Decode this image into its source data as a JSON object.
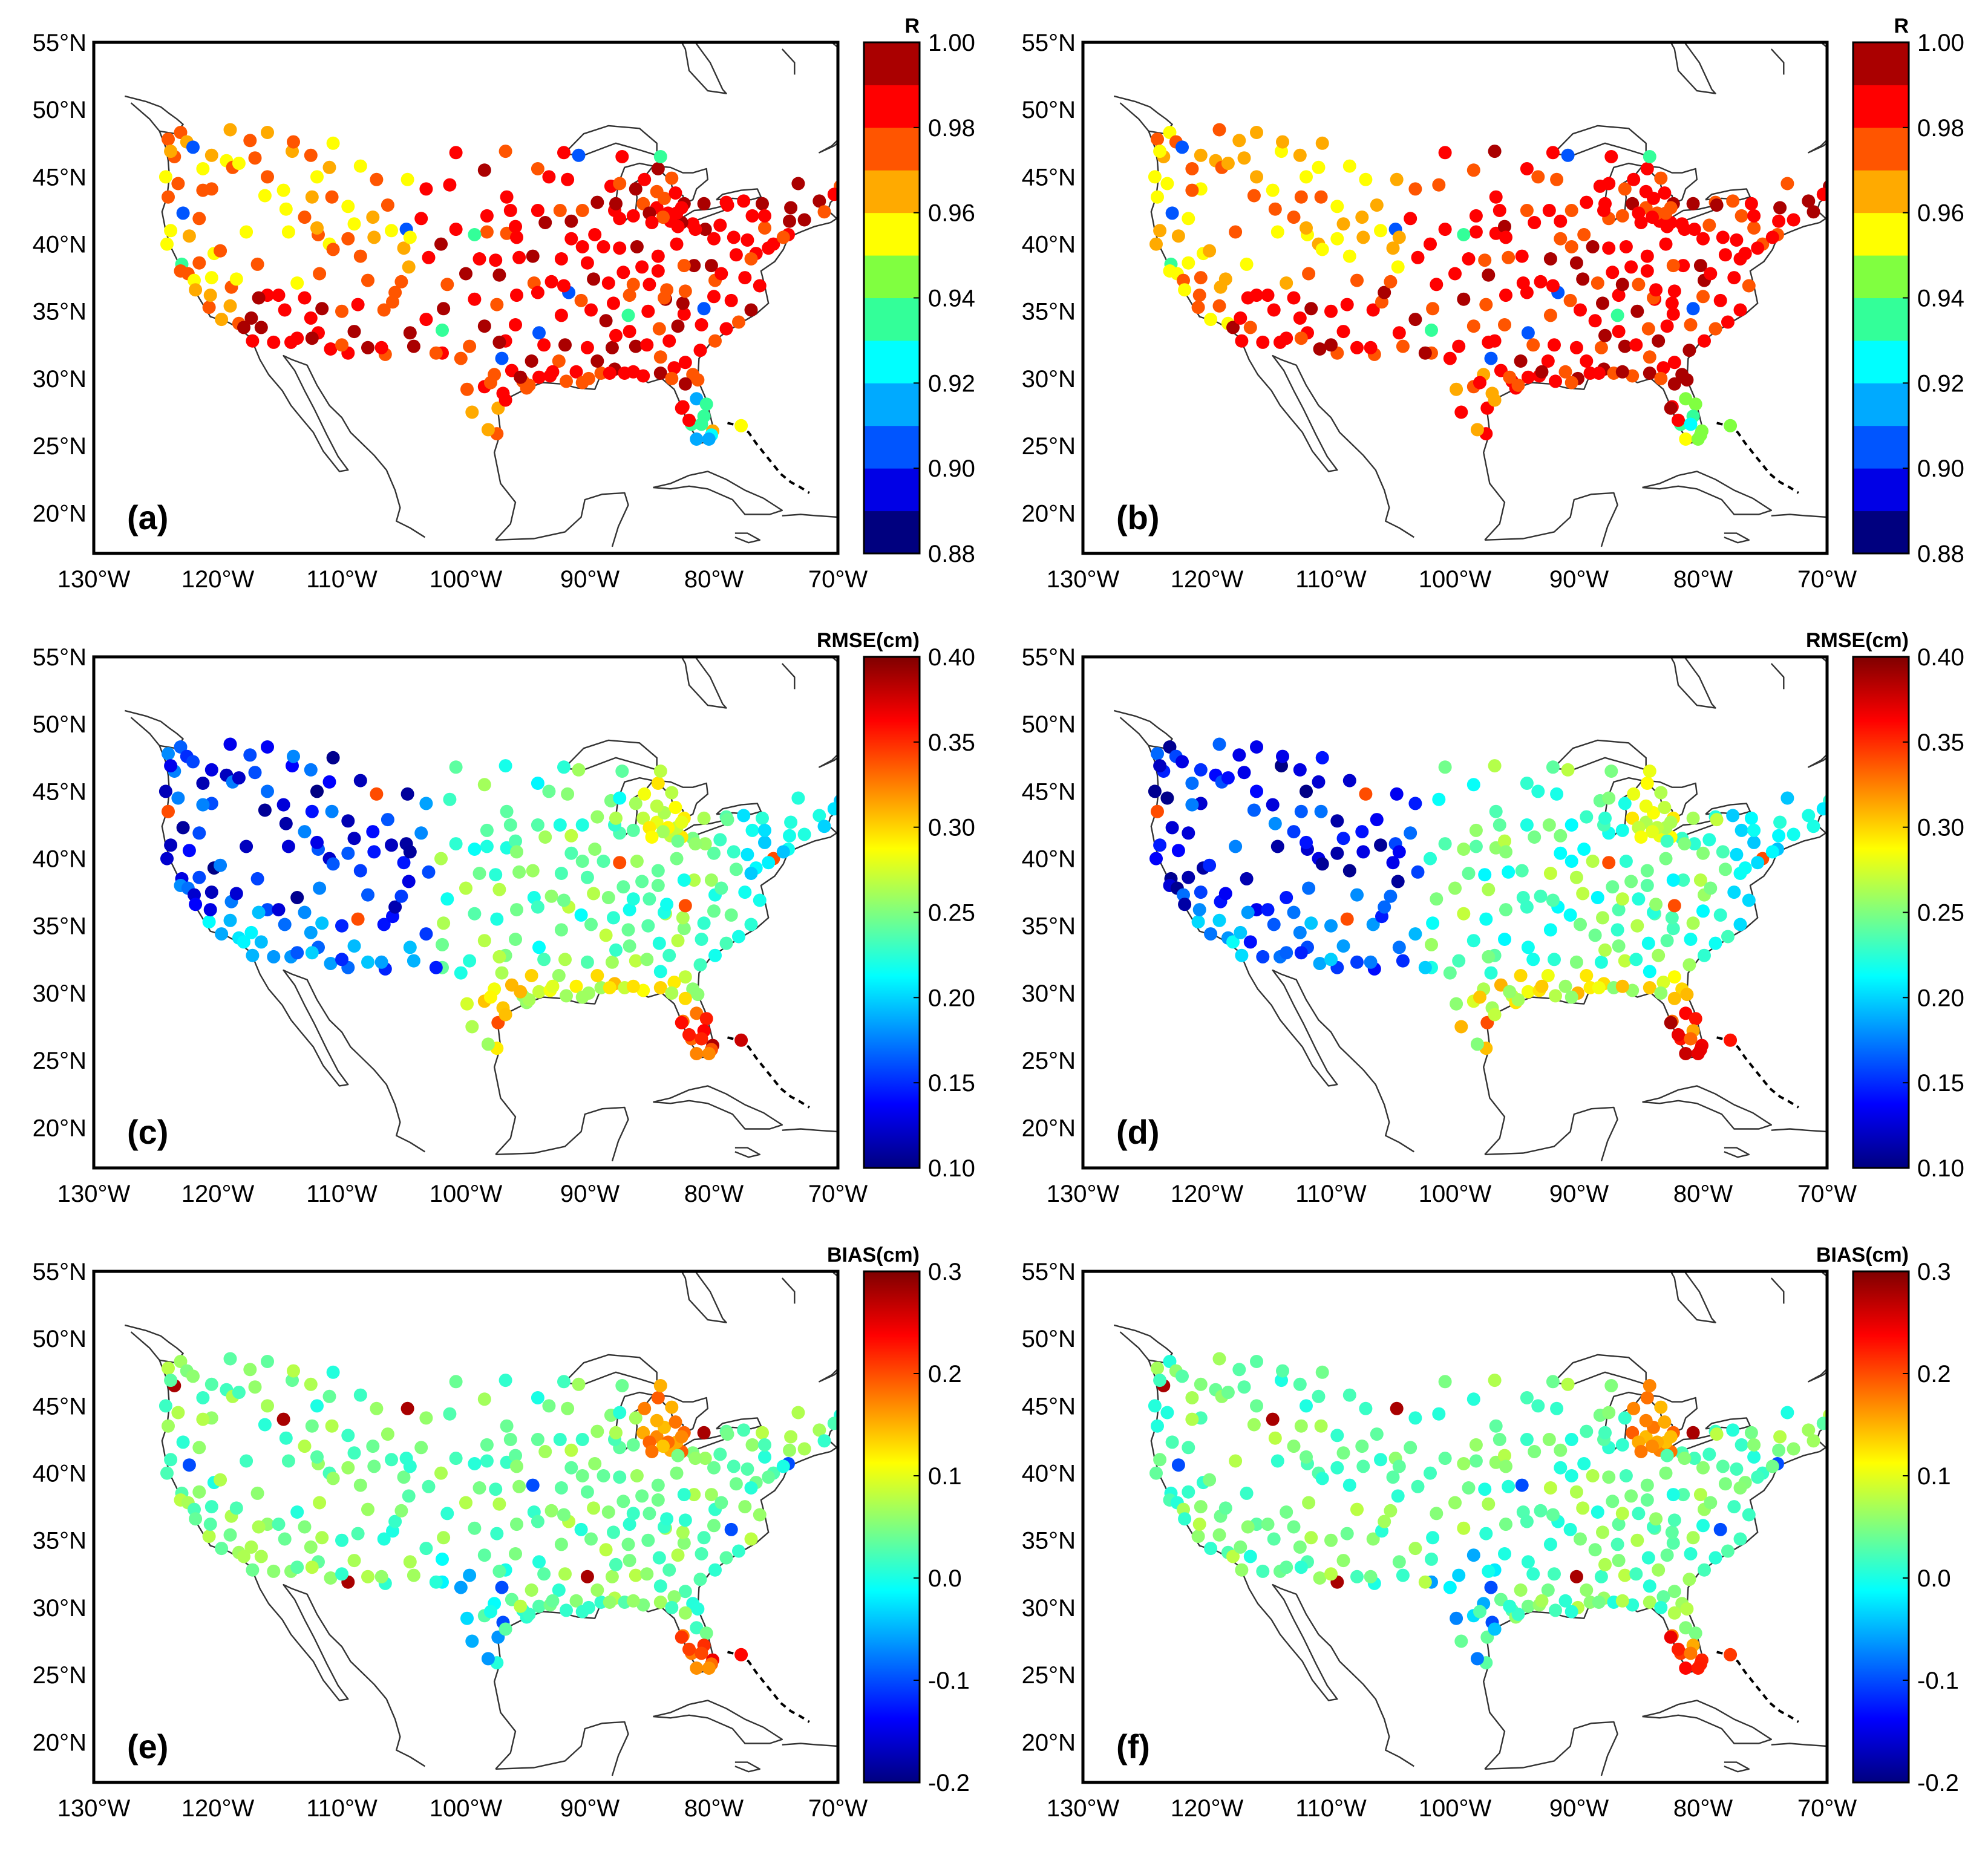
{
  "figure": {
    "lon_ticks": [
      "130°W",
      "120°W",
      "110°W",
      "100°W",
      "90°W",
      "80°W",
      "70°W"
    ],
    "lat_ticks": [
      "55°N",
      "50°N",
      "45°N",
      "40°N",
      "35°N",
      "30°N",
      "25°N",
      "20°N"
    ],
    "lon_range": [
      -130,
      -70
    ],
    "lat_range": [
      17,
      55
    ]
  },
  "colormap": {
    "jet_stops": [
      "#00007f",
      "#0000ff",
      "#007fff",
      "#00ffff",
      "#7fff7f",
      "#ffff00",
      "#ff7f00",
      "#ff0000",
      "#7f0000"
    ],
    "discrete_R": [
      "#00007f",
      "#0000e6",
      "#0055ff",
      "#00aaff",
      "#00ffff",
      "#33ff99",
      "#80ff40",
      "#ffff00",
      "#ffaa00",
      "#ff5500",
      "#ff0000",
      "#aa0000"
    ]
  },
  "panels": [
    {
      "id": "a",
      "label": "(a)",
      "cb_title": "R",
      "cb_ticks": [
        "1.00",
        "0.98",
        "0.96",
        "0.94",
        "0.92",
        "0.90",
        "0.88"
      ],
      "vmin": 0.88,
      "vmax": 1.0,
      "metric": "R",
      "variant": 0
    },
    {
      "id": "b",
      "label": "(b)",
      "cb_title": "R",
      "cb_ticks": [
        "1.00",
        "0.98",
        "0.96",
        "0.94",
        "0.92",
        "0.90",
        "0.88"
      ],
      "vmin": 0.88,
      "vmax": 1.0,
      "metric": "R",
      "variant": 1
    },
    {
      "id": "c",
      "label": "(c)",
      "cb_title": "RMSE(cm)",
      "cb_ticks": [
        "0.40",
        "0.35",
        "0.30",
        "0.25",
        "0.20",
        "0.15",
        "0.10"
      ],
      "vmin": 0.1,
      "vmax": 0.4,
      "metric": "RMSE",
      "variant": 0
    },
    {
      "id": "d",
      "label": "(d)",
      "cb_title": "RMSE(cm)",
      "cb_ticks": [
        "0.40",
        "0.35",
        "0.30",
        "0.25",
        "0.20",
        "0.15",
        "0.10"
      ],
      "vmin": 0.1,
      "vmax": 0.4,
      "metric": "RMSE",
      "variant": 1
    },
    {
      "id": "e",
      "label": "(e)",
      "cb_title": "BIAS(cm)",
      "cb_ticks": [
        "0.3",
        "0.2",
        "0.1",
        "0.0",
        "-0.1",
        "-0.2"
      ],
      "vmin": -0.2,
      "vmax": 0.3,
      "metric": "BIAS",
      "variant": 0
    },
    {
      "id": "f",
      "label": "(f)",
      "cb_title": "BIAS(cm)",
      "cb_ticks": [
        "0.3",
        "0.2",
        "0.1",
        "0.0",
        "-0.1",
        "-0.2"
      ],
      "vmin": -0.2,
      "vmax": 0.3,
      "metric": "BIAS",
      "variant": 1
    }
  ],
  "chart_data": {
    "type": "scatter",
    "x_label_ticks": [
      "130°W",
      "120°W",
      "110°W",
      "100°W",
      "90°W",
      "80°W",
      "70°W"
    ],
    "y_label_ticks": [
      "55°N",
      "50°N",
      "45°N",
      "40°N",
      "35°N",
      "30°N",
      "25°N",
      "20°N"
    ],
    "xlim": [
      -130,
      -70
    ],
    "ylim": [
      17,
      55
    ],
    "stations": [
      [
        -123.0,
        48.3
      ],
      [
        -122.5,
        47.6
      ],
      [
        -124.0,
        47.8
      ],
      [
        -123.5,
        46.5
      ],
      [
        -124.2,
        45.0
      ],
      [
        -124.0,
        43.5
      ],
      [
        -123.2,
        44.5
      ],
      [
        -122.8,
        42.3
      ],
      [
        -123.8,
        41.0
      ],
      [
        -122.3,
        40.6
      ],
      [
        -124.1,
        40.0
      ],
      [
        -122.9,
        38.5
      ],
      [
        -123.0,
        38.0
      ],
      [
        -122.4,
        37.8
      ],
      [
        -121.9,
        37.3
      ],
      [
        -121.5,
        38.6
      ],
      [
        -120.5,
        37.5
      ],
      [
        -121.8,
        36.6
      ],
      [
        -120.7,
        35.3
      ],
      [
        -119.7,
        34.4
      ],
      [
        -119.0,
        35.4
      ],
      [
        -118.3,
        34.1
      ],
      [
        -117.9,
        33.8
      ],
      [
        -117.2,
        32.8
      ],
      [
        -116.5,
        33.8
      ],
      [
        -115.5,
        32.7
      ],
      [
        -117.3,
        34.5
      ],
      [
        -118.9,
        36.8
      ],
      [
        -120.3,
        39.3
      ],
      [
        -119.8,
        39.5
      ],
      [
        -121.5,
        41.9
      ],
      [
        -120.5,
        44.1
      ],
      [
        -121.2,
        45.6
      ],
      [
        -119.3,
        46.2
      ],
      [
        -117.4,
        47.7
      ],
      [
        -119.0,
        48.5
      ],
      [
        -117.0,
        46.4
      ],
      [
        -116.2,
        43.6
      ],
      [
        -114.5,
        42.6
      ],
      [
        -112.4,
        43.5
      ],
      [
        -111.9,
        40.7
      ],
      [
        -113.6,
        37.1
      ],
      [
        -112.0,
        41.2
      ],
      [
        -114.0,
        46.9
      ],
      [
        -111.0,
        45.7
      ],
      [
        -112.5,
        46.6
      ],
      [
        -108.5,
        45.8
      ],
      [
        -106.3,
        42.9
      ],
      [
        -104.8,
        41.1
      ],
      [
        -105.0,
        39.7
      ],
      [
        -104.6,
        38.3
      ],
      [
        -106.6,
        35.1
      ],
      [
        -108.7,
        35.5
      ],
      [
        -105.9,
        35.7
      ],
      [
        -103.2,
        34.4
      ],
      [
        -106.5,
        31.8
      ],
      [
        -110.9,
        32.2
      ],
      [
        -111.9,
        33.4
      ],
      [
        -112.5,
        34.5
      ],
      [
        -111.6,
        35.2
      ],
      [
        -114.6,
        35.1
      ],
      [
        -114.1,
        32.7
      ],
      [
        -109.5,
        31.9
      ],
      [
        -104.5,
        33.4
      ],
      [
        -101.9,
        33.6
      ],
      [
        -101.8,
        35.2
      ],
      [
        -97.5,
        35.5
      ],
      [
        -95.9,
        36.2
      ],
      [
        -97.3,
        37.7
      ],
      [
        -95.7,
        39.0
      ],
      [
        -94.6,
        39.1
      ],
      [
        -96.7,
        40.8
      ],
      [
        -98.3,
        40.9
      ],
      [
        -100.8,
        41.1
      ],
      [
        -103.6,
        41.9
      ],
      [
        -100.8,
        46.8
      ],
      [
        -96.8,
        46.9
      ],
      [
        -98.5,
        45.5
      ],
      [
        -96.7,
        43.5
      ],
      [
        -101.3,
        44.4
      ],
      [
        -103.2,
        44.1
      ],
      [
        -93.3,
        45.0
      ],
      [
        -92.1,
        46.8
      ],
      [
        -93.6,
        41.6
      ],
      [
        -91.5,
        41.7
      ],
      [
        -90.2,
        38.6
      ],
      [
        -92.3,
        38.9
      ],
      [
        -94.5,
        37.1
      ],
      [
        -92.3,
        34.7
      ],
      [
        -94.1,
        33.4
      ],
      [
        -96.8,
        32.8
      ],
      [
        -97.3,
        32.7
      ],
      [
        -97.7,
        30.3
      ],
      [
        -98.5,
        29.4
      ],
      [
        -95.4,
        29.8
      ],
      [
        -94.1,
        30.1
      ],
      [
        -99.7,
        32.4
      ],
      [
        -101.9,
        31.9
      ],
      [
        -100.4,
        31.5
      ],
      [
        -97.4,
        27.8
      ],
      [
        -97.5,
        25.9
      ],
      [
        -99.5,
        27.5
      ],
      [
        -98.2,
        26.2
      ],
      [
        -93.2,
        30.2
      ],
      [
        -91.1,
        30.5
      ],
      [
        -90.1,
        30.0
      ],
      [
        -88.0,
        30.7
      ],
      [
        -89.1,
        30.4
      ],
      [
        -87.2,
        30.4
      ],
      [
        -85.7,
        30.2
      ],
      [
        -84.3,
        30.4
      ],
      [
        -82.5,
        27.9
      ],
      [
        -82.6,
        27.8
      ],
      [
        -81.4,
        28.5
      ],
      [
        -81.7,
        30.3
      ],
      [
        -80.1,
        26.1
      ],
      [
        -80.2,
        25.8
      ],
      [
        -81.8,
        26.6
      ],
      [
        -81.4,
        25.5
      ],
      [
        -80.6,
        28.1
      ],
      [
        -77.8,
        26.5
      ],
      [
        -90.2,
        32.3
      ],
      [
        -88.7,
        34.3
      ],
      [
        -86.8,
        33.5
      ],
      [
        -86.3,
        32.4
      ],
      [
        -84.4,
        33.7
      ],
      [
        -83.6,
        32.8
      ],
      [
        -81.1,
        32.1
      ],
      [
        -79.9,
        32.8
      ],
      [
        -81.0,
        34.0
      ],
      [
        -80.8,
        35.2
      ],
      [
        -78.6,
        35.8
      ],
      [
        -77.0,
        35.1
      ],
      [
        -76.3,
        36.9
      ],
      [
        -77.5,
        37.5
      ],
      [
        -79.9,
        37.3
      ],
      [
        -80.2,
        38.4
      ],
      [
        -81.6,
        38.4
      ],
      [
        -82.4,
        38.4
      ],
      [
        -84.5,
        38.0
      ],
      [
        -85.8,
        38.3
      ],
      [
        -86.8,
        36.2
      ],
      [
        -83.9,
        35.9
      ],
      [
        -85.3,
        35.0
      ],
      [
        -89.9,
        35.1
      ],
      [
        -88.5,
        37.1
      ],
      [
        -87.6,
        39.7
      ],
      [
        -86.2,
        39.8
      ],
      [
        -84.5,
        39.1
      ],
      [
        -83.0,
        40.0
      ],
      [
        -81.7,
        41.5
      ],
      [
        -80.0,
        40.4
      ],
      [
        -82.6,
        41.6
      ],
      [
        -83.5,
        41.7
      ],
      [
        -83.0,
        42.3
      ],
      [
        -84.6,
        42.7
      ],
      [
        -85.7,
        43.0
      ],
      [
        -86.3,
        44.1
      ],
      [
        -84.5,
        45.6
      ],
      [
        -84.0,
        43.4
      ],
      [
        -82.4,
        43.0
      ],
      [
        -83.7,
        42.3
      ],
      [
        -85.2,
        42.3
      ],
      [
        -86.5,
        42.1
      ],
      [
        -87.6,
        41.9
      ],
      [
        -88.0,
        42.5
      ],
      [
        -87.9,
        43.0
      ],
      [
        -89.4,
        43.1
      ],
      [
        -88.3,
        44.3
      ],
      [
        -87.4,
        46.5
      ],
      [
        -84.3,
        46.5
      ],
      [
        -90.9,
        46.6
      ],
      [
        -87.6,
        44.5
      ],
      [
        -85.6,
        44.8
      ],
      [
        -83.4,
        44.9
      ],
      [
        -84.1,
        42.0
      ],
      [
        -85.0,
        41.6
      ],
      [
        -84.6,
        43.9
      ],
      [
        -83.1,
        43.8
      ],
      [
        -82.6,
        42.7
      ],
      [
        -80.8,
        43.0
      ],
      [
        -79.0,
        43.1
      ],
      [
        -78.9,
        42.9
      ],
      [
        -77.6,
        43.2
      ],
      [
        -76.1,
        43.0
      ],
      [
        -73.8,
        42.7
      ],
      [
        -73.2,
        44.5
      ],
      [
        -71.5,
        43.2
      ],
      [
        -71.1,
        42.4
      ],
      [
        -69.8,
        44.3
      ],
      [
        -70.3,
        43.7
      ],
      [
        -72.7,
        41.8
      ],
      [
        -74.0,
        40.7
      ],
      [
        -75.2,
        40.0
      ],
      [
        -75.6,
        39.7
      ],
      [
        -76.6,
        39.3
      ],
      [
        -77.0,
        38.9
      ],
      [
        -74.4,
        40.5
      ],
      [
        -75.9,
        41.2
      ],
      [
        -77.3,
        40.3
      ],
      [
        -79.5,
        41.4
      ],
      [
        -78.4,
        40.5
      ],
      [
        -80.7,
        41.1
      ],
      [
        -81.5,
        41.1
      ],
      [
        -82.9,
        41.3
      ],
      [
        -89.6,
        40.7
      ],
      [
        -90.6,
        42.5
      ],
      [
        -91.8,
        44.8
      ],
      [
        -94.2,
        45.6
      ],
      [
        -96.0,
        41.3
      ],
      [
        -95.9,
        40.5
      ],
      [
        -93.1,
        37.2
      ],
      [
        -91.7,
        36.4
      ],
      [
        -90.7,
        35.8
      ],
      [
        -92.1,
        36.9
      ],
      [
        -94.2,
        36.4
      ],
      [
        -96.0,
        34.0
      ],
      [
        -98.5,
        33.9
      ],
      [
        -99.3,
        35.9
      ],
      [
        -101.5,
        37.0
      ],
      [
        -100.0,
        37.8
      ],
      [
        -98.9,
        38.9
      ],
      [
        -97.6,
        38.8
      ],
      [
        -99.3,
        40.7
      ],
      [
        -102.0,
        40.0
      ],
      [
        -104.5,
        40.5
      ],
      [
        -107.4,
        40.5
      ],
      [
        -108.5,
        39.1
      ],
      [
        -107.9,
        37.3
      ],
      [
        -105.7,
        36.4
      ],
      [
        -107.5,
        42.0
      ],
      [
        -109.5,
        42.8
      ],
      [
        -110.8,
        43.5
      ],
      [
        -112.0,
        45.0
      ],
      [
        -113.9,
        47.6
      ],
      [
        -116.0,
        48.3
      ],
      [
        -118.8,
        45.7
      ],
      [
        -121.2,
        44.0
      ],
      [
        -110.7,
        47.5
      ],
      [
        -104.7,
        44.8
      ],
      [
        -107.2,
        44.8
      ],
      [
        -109.5,
        40.4
      ],
      [
        -111.8,
        37.8
      ],
      [
        -114.3,
        40.9
      ],
      [
        -117.7,
        40.9
      ],
      [
        -116.0,
        36.2
      ],
      [
        -115.1,
        36.2
      ],
      [
        -110.0,
        35.0
      ],
      [
        -113.0,
        36.0
      ],
      [
        -109.0,
        33.5
      ],
      [
        -107.9,
        32.3
      ],
      [
        -104.2,
        32.4
      ],
      [
        -102.4,
        31.9
      ],
      [
        -97.1,
        31.5
      ],
      [
        -96.3,
        30.6
      ],
      [
        -94.7,
        31.3
      ],
      [
        -93.7,
        32.5
      ],
      [
        -92.0,
        32.5
      ],
      [
        -92.5,
        31.3
      ],
      [
        -89.4,
        31.3
      ],
      [
        -88.2,
        32.3
      ],
      [
        -87.9,
        33.2
      ],
      [
        -85.4,
        32.5
      ],
      [
        -84.3,
        31.6
      ],
      [
        -82.3,
        31.2
      ],
      [
        -83.2,
        30.8
      ],
      [
        -82.9,
        33.9
      ],
      [
        -82.4,
        34.8
      ],
      [
        -79.0,
        33.7
      ],
      [
        -78.0,
        34.2
      ],
      [
        -80.0,
        36.1
      ],
      [
        -82.5,
        35.6
      ],
      [
        -84.0,
        36.0
      ],
      [
        -85.2,
        37.0
      ],
      [
        -86.5,
        37.0
      ],
      [
        -88.1,
        35.6
      ],
      [
        -86.9,
        34.7
      ],
      [
        -89.7,
        37.4
      ],
      [
        -90.6,
        39.8
      ],
      [
        -91.5,
        40.4
      ],
      [
        -92.4,
        42.5
      ],
      [
        -94.2,
        42.5
      ],
      [
        -96.4,
        42.5
      ],
      [
        -98.3,
        42.1
      ],
      [
        -88.9,
        39.8
      ],
      [
        -87.3,
        37.9
      ],
      [
        -83.8,
        36.6
      ],
      [
        -82.3,
        36.5
      ],
      [
        -79.4,
        37.8
      ],
      [
        -78.2,
        39.2
      ],
      [
        -76.9,
        42.1
      ],
      [
        -75.9,
        42.1
      ],
      [
        -73.9,
        41.7
      ],
      [
        -123.8,
        46.9
      ],
      [
        -122.0,
        47.2
      ],
      [
        -120.5,
        46.6
      ],
      [
        -118.3,
        46.0
      ],
      [
        -116.0,
        45.0
      ],
      [
        -114.7,
        44.0
      ],
      [
        -113.0,
        42.0
      ],
      [
        -111.0,
        40.0
      ],
      [
        -109.0,
        41.5
      ],
      [
        -106.0,
        41.0
      ],
      [
        -103.0,
        39.0
      ],
      [
        -110.7,
        39.6
      ],
      [
        -116.8,
        38.5
      ],
      [
        -118.5,
        37.4
      ],
      [
        -120.6,
        36.2
      ],
      [
        -116.7,
        36.0
      ],
      [
        -112.4,
        33.0
      ],
      [
        -110.0,
        32.5
      ],
      [
        -113.6,
        33.0
      ],
      [
        -106.8,
        32.3
      ],
      [
        -105.2,
        37.2
      ],
      [
        -97.0,
        28.9
      ],
      [
        -95.1,
        29.3
      ],
      [
        -94.9,
        29.5
      ],
      [
        -96.8,
        28.4
      ],
      [
        -98.0,
        29.7
      ],
      [
        -99.9,
        29.2
      ],
      [
        -95.6,
        30.1
      ],
      [
        -93.0,
        30.5
      ],
      [
        -91.9,
        29.8
      ],
      [
        -90.6,
        29.7
      ],
      [
        -88.4,
        30.4
      ],
      [
        -86.5,
        30.5
      ],
      [
        -83.4,
        30.0
      ],
      [
        -82.3,
        29.6
      ],
      [
        -81.3,
        29.9
      ],
      [
        -80.8,
        27.2
      ],
      [
        -82.0,
        26.9
      ],
      [
        -81.0,
        26.6
      ],
      [
        -80.4,
        25.5
      ]
    ]
  }
}
